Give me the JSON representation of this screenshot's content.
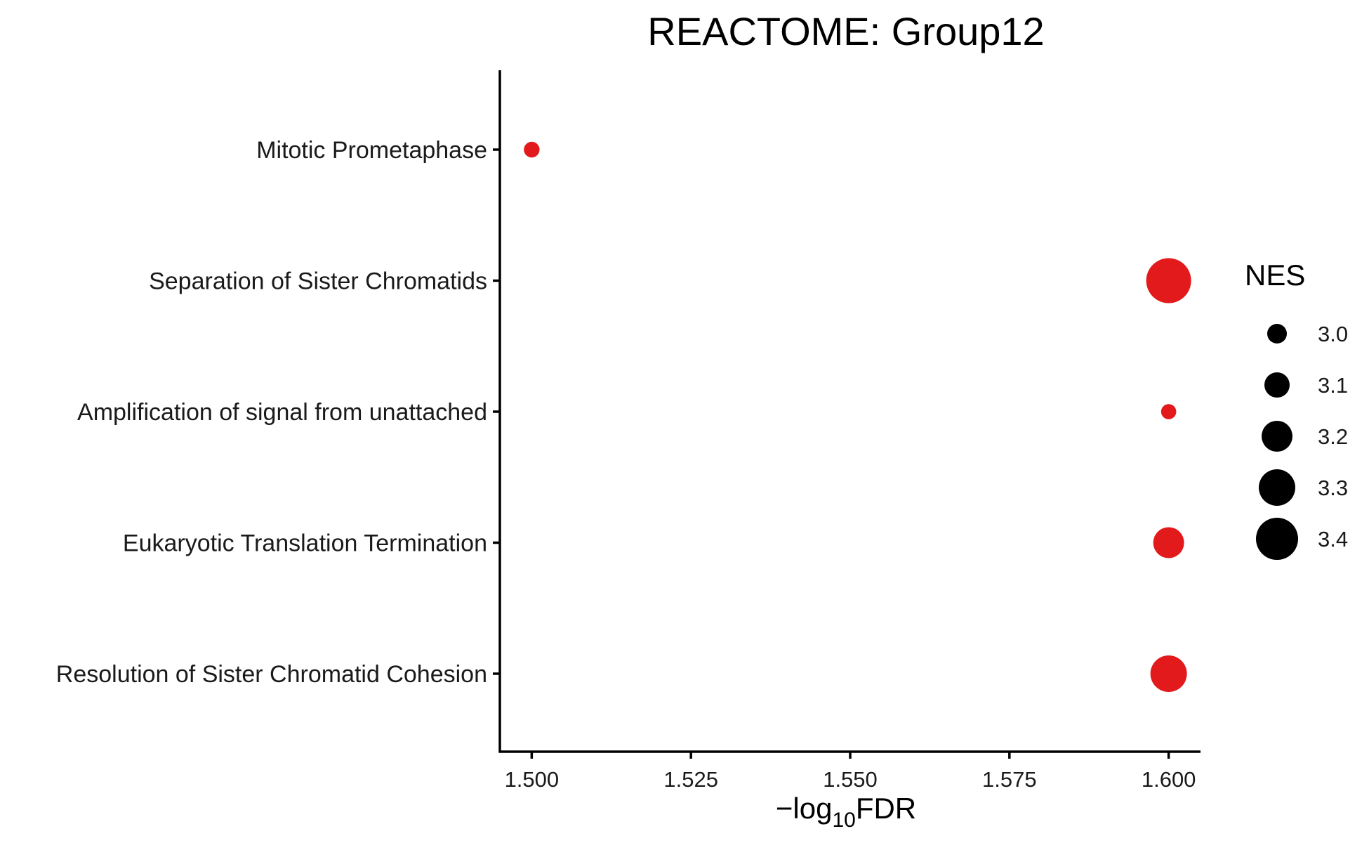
{
  "chart_data": {
    "type": "scatter",
    "title": "REACTOME: Group12",
    "xlabel": {
      "prefix": "−log",
      "subscript": "10",
      "suffix": "FDR"
    },
    "ylabel": "",
    "xlim": [
      1.495,
      1.605
    ],
    "x_ticks": [
      1.5,
      1.525,
      1.55,
      1.575,
      1.6
    ],
    "x_tick_labels": [
      "1.500",
      "1.525",
      "1.550",
      "1.575",
      "1.600"
    ],
    "categories": [
      "Mitotic Prometaphase",
      "Separation of Sister Chromatids",
      "Amplification  of signal from unattached",
      "Eukaryotic Translation Termination",
      "Resolution of Sister Chromatid Cohesion"
    ],
    "points": [
      {
        "category": "Mitotic Prometaphase",
        "x": 1.5,
        "nes": 2.93
      },
      {
        "category": "Separation of Sister Chromatids",
        "x": 1.6,
        "nes": 3.45
      },
      {
        "category": "Amplification  of signal from unattached",
        "x": 1.6,
        "nes": 2.92
      },
      {
        "category": "Eukaryotic Translation Termination",
        "x": 1.6,
        "nes": 3.2
      },
      {
        "category": "Resolution of Sister Chromatid Cohesion",
        "x": 1.6,
        "nes": 3.3
      }
    ],
    "point_color": "#E31A1C",
    "legend": {
      "title": "NES",
      "position": "right",
      "values": [
        3.0,
        3.1,
        3.2,
        3.3,
        3.4
      ],
      "labels": [
        "3.0",
        "3.1",
        "3.2",
        "3.3",
        "3.4"
      ],
      "color": "#000000"
    },
    "grid": false
  }
}
